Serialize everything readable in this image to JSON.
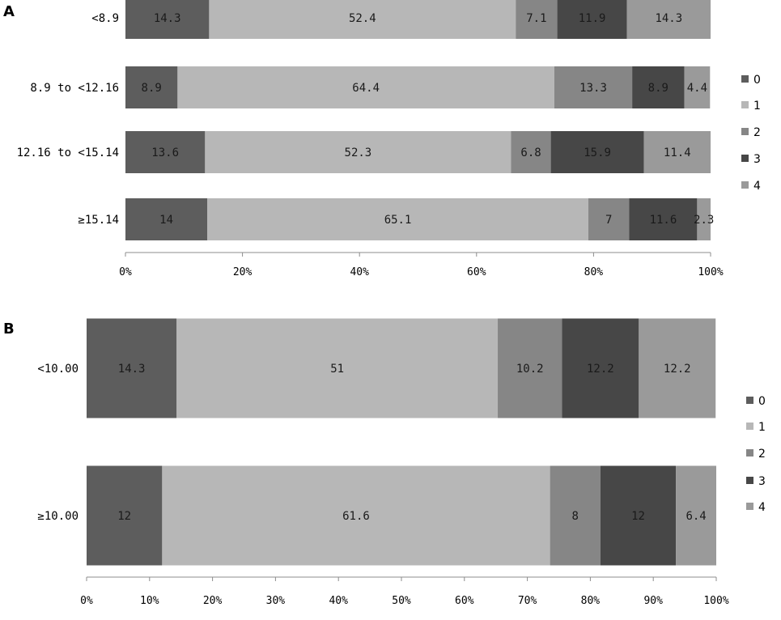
{
  "colors": [
    "#5d5d5d",
    "#b7b7b7",
    "#868686",
    "#474747",
    "#9a9a9a"
  ],
  "chart_data": [
    {
      "type": "bar",
      "orientation": "horizontal",
      "stacked": "percent",
      "panel_label": "A",
      "categories": [
        "<8.9",
        "8.9 to <12.16",
        "12.16 to <15.14",
        "≥15.14"
      ],
      "series": [
        {
          "name": "0",
          "values": [
            14.3,
            8.9,
            13.6,
            14
          ]
        },
        {
          "name": "1",
          "values": [
            52.4,
            64.4,
            52.3,
            65.1
          ]
        },
        {
          "name": "2",
          "values": [
            7.1,
            13.3,
            6.8,
            7
          ]
        },
        {
          "name": "3",
          "values": [
            11.9,
            8.9,
            15.9,
            11.6
          ]
        },
        {
          "name": "4",
          "values": [
            14.3,
            4.4,
            11.4,
            2.3
          ]
        }
      ],
      "xticks": [
        "0%",
        "20%",
        "40%",
        "60%",
        "80%",
        "100%"
      ],
      "xlim": [
        0,
        100
      ],
      "legend": [
        "0",
        "1",
        "2",
        "3",
        "4"
      ]
    },
    {
      "type": "bar",
      "orientation": "horizontal",
      "stacked": "percent",
      "panel_label": "B",
      "categories": [
        "<10.00",
        "≥10.00"
      ],
      "series": [
        {
          "name": "0",
          "values": [
            14.3,
            12
          ]
        },
        {
          "name": "1",
          "values": [
            51,
            61.6
          ]
        },
        {
          "name": "2",
          "values": [
            10.2,
            8
          ]
        },
        {
          "name": "3",
          "values": [
            12.2,
            12
          ]
        },
        {
          "name": "4",
          "values": [
            12.2,
            6.4
          ]
        }
      ],
      "xticks": [
        "0%",
        "10%",
        "20%",
        "30%",
        "40%",
        "50%",
        "60%",
        "70%",
        "80%",
        "90%",
        "100%"
      ],
      "xlim": [
        0,
        100
      ],
      "legend": [
        "0",
        "1",
        "2",
        "3",
        "4"
      ]
    }
  ]
}
